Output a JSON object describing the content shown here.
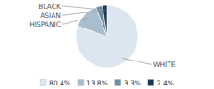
{
  "chart_data": {
    "type": "pie",
    "categories": [
      "WHITE",
      "HISPANIC",
      "ASIAN",
      "BLACK"
    ],
    "values": [
      80.4,
      13.8,
      3.3,
      2.4
    ],
    "value_labels": [
      "80.4%",
      "13.8%",
      "3.3%",
      "2.4%"
    ],
    "colors": [
      "#dce6f0",
      "#a8becd",
      "#6b8fa6",
      "#1e3a52"
    ],
    "legend": "bottom"
  }
}
